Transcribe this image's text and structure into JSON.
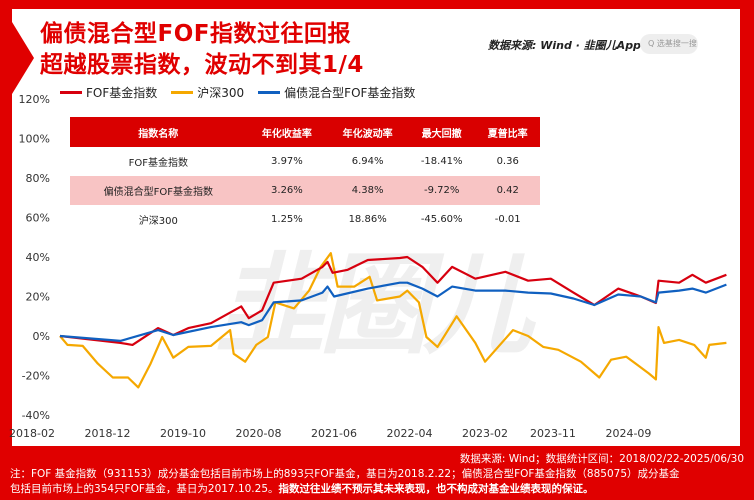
{
  "header": {
    "title_line1": "偏债混合型FOF指数过往回报",
    "title_line2": "超越股票指数，波动不到其1/4",
    "source_brand": "数据来源: Wind · 韭圈儿App",
    "search_placeholder": "Q 选基搜一搜"
  },
  "watermark": "韭圈儿",
  "colors": {
    "accent": "#e00000",
    "fof": "#d7000f",
    "hs300": "#f5a800",
    "bond_fof": "#1060c0",
    "table_header": "#d90000",
    "table_highlight": "#f8c4c4"
  },
  "table": {
    "headers": [
      "指数名称",
      "年化收益率",
      "年化波动率",
      "最大回撤",
      "夏普比率"
    ],
    "rows": [
      [
        "FOF基金指数",
        "3.97%",
        "6.94%",
        "-18.41%",
        "0.36"
      ],
      [
        "偏债混合型FOF基金指数",
        "3.26%",
        "4.38%",
        "-9.72%",
        "0.42"
      ],
      [
        "沪深300",
        "1.25%",
        "18.86%",
        "-45.60%",
        "-0.01"
      ]
    ]
  },
  "footer": {
    "source": "数据来源: Wind；数据统计区间：2018/02/22-2025/06/30",
    "note1": "注：FOF 基金指数（931153）成分基金包括目前市场上的893只FOF基金，基日为2018.2.22；偏债混合型FOF基金指数（885075）成分基金",
    "note2": "包括目前市场上的354只FOF基金，基日为2017.10.25。",
    "note2_bold": "指数过往业绩不预示其未来表现，也不构成对基金业绩表现的保证。"
  },
  "chart_data": {
    "type": "line",
    "title": "",
    "xlabel": "",
    "ylabel": "",
    "ylim": [
      -40,
      120
    ],
    "yticks": [
      "120%",
      "100%",
      "80%",
      "60%",
      "40%",
      "20%",
      "0%",
      "-20%",
      "-40%"
    ],
    "xticks": [
      "2018-02",
      "2018-12",
      "2019-10",
      "2020-08",
      "2021-06",
      "2022-04",
      "2023-02",
      "2023-11",
      "2024-09"
    ],
    "xrange": [
      "2018-02-22",
      "2025-06-30"
    ],
    "grid": false,
    "legend": "top-left",
    "series": [
      {
        "name": "FOF基金指数",
        "color": "#d7000f",
        "points": [
          [
            "2018-02-22",
            0
          ],
          [
            "2018-10-22",
            -3.5
          ],
          [
            "2018-12-10",
            -4.5
          ],
          [
            "2019-03-22",
            4
          ],
          [
            "2019-05-22",
            0.5
          ],
          [
            "2019-07-22",
            4
          ],
          [
            "2019-10-22",
            6.5
          ],
          [
            "2020-02-22",
            15
          ],
          [
            "2020-03-22",
            9
          ],
          [
            "2020-05-15",
            13
          ],
          [
            "2020-07-01",
            27
          ],
          [
            "2020-10-22",
            29
          ],
          [
            "2021-01-15",
            35
          ],
          [
            "2021-02-05",
            37.5
          ],
          [
            "2021-02-25",
            32
          ],
          [
            "2021-04-25",
            33.5
          ],
          [
            "2021-07-15",
            38.5
          ],
          [
            "2021-11-22",
            39.5
          ],
          [
            "2021-12-22",
            40
          ],
          [
            "2022-02-22",
            35
          ],
          [
            "2022-04-22",
            27
          ],
          [
            "2022-06-20",
            35
          ],
          [
            "2022-09-22",
            29
          ],
          [
            "2023-01-22",
            32.5
          ],
          [
            "2023-04-22",
            28
          ],
          [
            "2023-07-22",
            29
          ],
          [
            "2023-10-22",
            22
          ],
          [
            "2024-01-15",
            15.7
          ],
          [
            "2024-04-20",
            24
          ],
          [
            "2024-07-20",
            20
          ],
          [
            "2024-09-20",
            16.7
          ],
          [
            "2024-09-30",
            28
          ],
          [
            "2024-12-22",
            27
          ],
          [
            "2025-02-15",
            31
          ],
          [
            "2025-04-08",
            27
          ],
          [
            "2025-06-30",
            31
          ]
        ]
      },
      {
        "name": "沪深300",
        "color": "#f5a800",
        "points": [
          [
            "2018-02-22",
            0
          ],
          [
            "2018-03-22",
            -4.5
          ],
          [
            "2018-05-22",
            -5
          ],
          [
            "2018-07-22",
            -14
          ],
          [
            "2018-09-22",
            -21
          ],
          [
            "2018-11-22",
            -21
          ],
          [
            "2019-01-03",
            -26
          ],
          [
            "2019-02-22",
            -14
          ],
          [
            "2019-04-08",
            -0.5
          ],
          [
            "2019-05-22",
            -11
          ],
          [
            "2019-07-22",
            -5.5
          ],
          [
            "2019-10-22",
            -5
          ],
          [
            "2020-01-08",
            3
          ],
          [
            "2020-01-22",
            -9
          ],
          [
            "2020-03-08",
            -13
          ],
          [
            "2020-04-22",
            -4.5
          ],
          [
            "2020-06-08",
            -0.5
          ],
          [
            "2020-07-08",
            17
          ],
          [
            "2020-09-22",
            14
          ],
          [
            "2020-11-22",
            23
          ],
          [
            "2021-01-08",
            35
          ],
          [
            "2021-02-18",
            42
          ],
          [
            "2021-03-15",
            25
          ],
          [
            "2021-05-22",
            25
          ],
          [
            "2021-07-22",
            30
          ],
          [
            "2021-08-22",
            18
          ],
          [
            "2021-11-22",
            20
          ],
          [
            "2021-12-22",
            23
          ],
          [
            "2022-02-08",
            17
          ],
          [
            "2022-03-08",
            -0.5
          ],
          [
            "2022-04-22",
            -5.5
          ],
          [
            "2022-07-08",
            10
          ],
          [
            "2022-09-22",
            -3.5
          ],
          [
            "2022-11-01",
            -13
          ],
          [
            "2023-02-22",
            3
          ],
          [
            "2023-04-22",
            0
          ],
          [
            "2023-06-22",
            -5.5
          ],
          [
            "2023-08-22",
            -7
          ],
          [
            "2023-11-22",
            -13
          ],
          [
            "2024-02-05",
            -21
          ],
          [
            "2024-03-22",
            -12
          ],
          [
            "2024-05-22",
            -10.5
          ],
          [
            "2024-08-22",
            -19
          ],
          [
            "2024-09-20",
            -22
          ],
          [
            "2024-09-30",
            4.5
          ],
          [
            "2024-10-22",
            -3.5
          ],
          [
            "2024-12-22",
            -2
          ],
          [
            "2025-02-22",
            -4.5
          ],
          [
            "2025-04-08",
            -11
          ],
          [
            "2025-04-22",
            -4.5
          ],
          [
            "2025-06-30",
            -3.5
          ]
        ]
      },
      {
        "name": "偏债混合型FOF基金指数",
        "color": "#1060c0",
        "points": [
          [
            "2018-02-22",
            0
          ],
          [
            "2018-10-22",
            -2.5
          ],
          [
            "2019-03-22",
            3
          ],
          [
            "2019-05-22",
            0.5
          ],
          [
            "2019-10-22",
            4.5
          ],
          [
            "2020-02-22",
            7
          ],
          [
            "2020-03-22",
            5.5
          ],
          [
            "2020-05-15",
            8
          ],
          [
            "2020-07-01",
            17
          ],
          [
            "2020-10-22",
            18
          ],
          [
            "2021-01-15",
            22
          ],
          [
            "2021-02-05",
            25
          ],
          [
            "2021-03-01",
            20
          ],
          [
            "2021-07-15",
            24
          ],
          [
            "2021-11-22",
            27
          ],
          [
            "2021-12-22",
            27
          ],
          [
            "2022-02-22",
            24
          ],
          [
            "2022-04-22",
            20
          ],
          [
            "2022-06-20",
            25
          ],
          [
            "2022-09-22",
            23
          ],
          [
            "2023-01-22",
            23
          ],
          [
            "2023-04-22",
            22
          ],
          [
            "2023-07-22",
            21.5
          ],
          [
            "2023-10-22",
            19
          ],
          [
            "2024-01-15",
            15.7
          ],
          [
            "2024-04-20",
            21
          ],
          [
            "2024-07-20",
            20
          ],
          [
            "2024-09-20",
            17
          ],
          [
            "2024-09-30",
            22
          ],
          [
            "2024-12-22",
            23
          ],
          [
            "2025-02-15",
            24
          ],
          [
            "2025-04-08",
            22
          ],
          [
            "2025-06-30",
            26
          ]
        ]
      }
    ]
  }
}
